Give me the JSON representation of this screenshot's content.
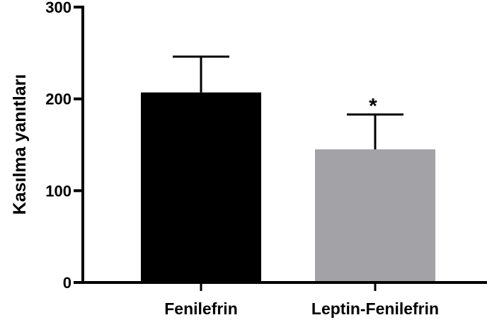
{
  "chart_data": {
    "type": "bar",
    "ylabel": "Kasılma yanıtları",
    "xlabel": "",
    "title": "",
    "ylim": [
      0,
      300
    ],
    "yticks": [
      "0",
      "100",
      "200",
      "300"
    ],
    "categories": [
      "Fenilefrin",
      "Leptin-Fenilefrin"
    ],
    "values": [
      207,
      145
    ],
    "error_upper": [
      39,
      38
    ],
    "bar_colors": [
      "#000000",
      "#a3a2a7"
    ],
    "annotations": [
      "",
      "*"
    ],
    "grid": false
  }
}
